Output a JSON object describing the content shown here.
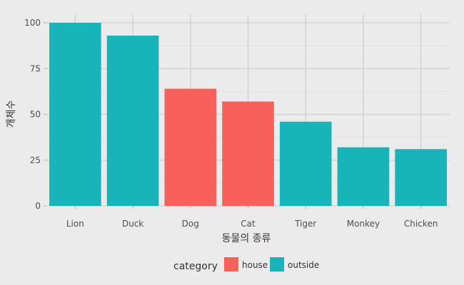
{
  "chart_data": {
    "type": "bar",
    "categories": [
      "Lion",
      "Duck",
      "Dog",
      "Cat",
      "Tiger",
      "Monkey",
      "Chicken"
    ],
    "values": [
      100,
      93,
      64,
      57,
      46,
      32,
      31
    ],
    "groups": [
      "outside",
      "outside",
      "house",
      "house",
      "outside",
      "outside",
      "outside"
    ],
    "xlabel": "동물의 종류",
    "ylabel": "개체수",
    "ylim": [
      0,
      100
    ],
    "yticks": [
      0,
      25,
      50,
      75,
      100
    ],
    "grid": true,
    "legend": {
      "title": "category",
      "placement": "bottom",
      "entries": [
        {
          "label": "house",
          "color": "#f8605b"
        },
        {
          "label": "outside",
          "color": "#19b4ba"
        }
      ]
    },
    "colors": {
      "house": "#f8605b",
      "outside": "#19b4ba",
      "panel_background": "#ebebeb",
      "gridline": "#cfcfcf"
    }
  }
}
